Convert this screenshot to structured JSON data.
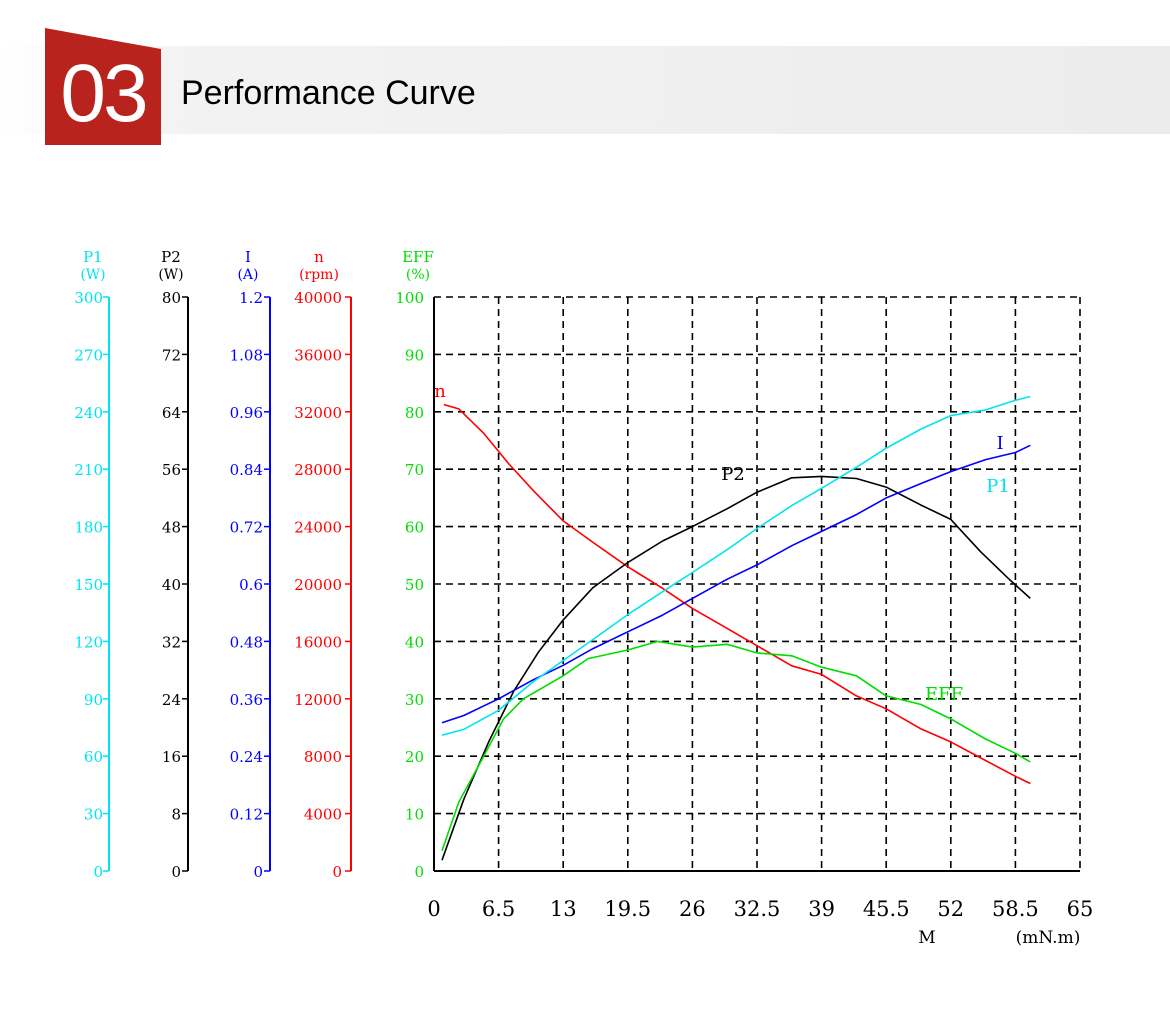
{
  "section": {
    "number": "03",
    "title": "Performance Curve"
  },
  "chart_data": {
    "type": "line",
    "colors": {
      "P1": "#00e5ee",
      "P2": "#000000",
      "I": "#0000ff",
      "n": "#ff0000",
      "EFF": "#00dd00"
    },
    "x_axis": {
      "ticks": [
        "0",
        "6.5",
        "13",
        "19.5",
        "26",
        "32.5",
        "39",
        "45.5",
        "52",
        "58.5",
        "65"
      ],
      "label": "M",
      "unit": "(mN.m)",
      "range": [
        0,
        65
      ]
    },
    "y_axes": [
      {
        "id": "P1",
        "label": "P1",
        "unit": "(W)",
        "range": [
          0,
          300
        ],
        "ticks": [
          "300",
          "270",
          "240",
          "210",
          "180",
          "150",
          "120",
          "90",
          "60",
          "30",
          "0"
        ]
      },
      {
        "id": "P2",
        "label": "P2",
        "unit": "(W)",
        "range": [
          0,
          80
        ],
        "ticks": [
          "80",
          "72",
          "64",
          "56",
          "48",
          "40",
          "32",
          "24",
          "16",
          "8",
          "0"
        ]
      },
      {
        "id": "I",
        "label": "I",
        "unit": "(A)",
        "range": [
          0,
          1.2
        ],
        "ticks": [
          "1.2",
          "1.08",
          "0.96",
          "0.84",
          "0.72",
          "0.6",
          "0.48",
          "0.36",
          "0.24",
          "0.12",
          "0"
        ]
      },
      {
        "id": "n",
        "label": "n",
        "unit": "(rpm)",
        "range": [
          0,
          40000
        ],
        "ticks": [
          "40000",
          "36000",
          "32000",
          "28000",
          "24000",
          "20000",
          "16000",
          "12000",
          "8000",
          "4000",
          "0"
        ]
      },
      {
        "id": "EFF",
        "label": "EFF",
        "unit": "(%)",
        "range": [
          0,
          100
        ],
        "ticks": [
          "100",
          "90",
          "80",
          "70",
          "60",
          "50",
          "40",
          "30",
          "20",
          "10",
          "0"
        ]
      }
    ],
    "grid": true,
    "series": [
      {
        "name": "n",
        "label": "n",
        "axis": "n",
        "x": [
          1,
          2.5,
          5,
          7.5,
          10,
          13,
          16,
          19.5,
          23,
          26,
          29,
          32.5,
          36,
          39,
          42.5,
          45.5,
          49,
          52,
          55.5,
          58.5,
          60
        ],
        "y": [
          32500,
          32200,
          30500,
          28400,
          26500,
          24400,
          22900,
          21200,
          19700,
          18300,
          17100,
          15700,
          14300,
          13700,
          12200,
          11300,
          9900,
          9000,
          7700,
          6600,
          6100
        ]
      },
      {
        "name": "P2",
        "label": "P2",
        "axis": "P2",
        "x": [
          0.8,
          3,
          5.5,
          8,
          10.5,
          13,
          16,
          19.5,
          23,
          26,
          29.5,
          32.5,
          36,
          39,
          42.5,
          45.5,
          49,
          52,
          55,
          58,
          60
        ],
        "y": [
          1.5,
          10,
          18,
          25,
          30.5,
          35,
          39.5,
          43,
          46,
          48,
          50.5,
          52.8,
          54.8,
          55,
          54.7,
          53.5,
          51,
          49,
          44.5,
          40.5,
          38
        ]
      },
      {
        "name": "I",
        "label": "I",
        "axis": "I",
        "x": [
          0.8,
          3,
          6.5,
          10,
          13,
          16,
          19.5,
          23,
          26,
          29.5,
          32.5,
          36,
          39,
          42.5,
          45.5,
          49,
          52,
          55.5,
          58.5,
          60
        ],
        "y": [
          0.31,
          0.325,
          0.36,
          0.4,
          0.43,
          0.465,
          0.5,
          0.535,
          0.57,
          0.61,
          0.64,
          0.68,
          0.71,
          0.745,
          0.78,
          0.81,
          0.835,
          0.86,
          0.875,
          0.89
        ]
      },
      {
        "name": "P1",
        "label": "P1",
        "axis": "P1",
        "x": [
          0.8,
          3,
          6.5,
          10,
          13,
          16,
          19.5,
          23,
          26,
          29.5,
          32.5,
          36,
          39,
          42.5,
          45.5,
          49,
          52,
          55.5,
          58.5,
          60
        ],
        "y": [
          71,
          74,
          84,
          99,
          110,
          121,
          134,
          146,
          156,
          168,
          179,
          191,
          200,
          211,
          221,
          231,
          238,
          241,
          246,
          248
        ]
      },
      {
        "name": "EFF",
        "label": "EFF",
        "axis": "EFF",
        "x": [
          0.8,
          2.5,
          5,
          7,
          9,
          11,
          13,
          15.5,
          19.5,
          22.5,
          26,
          29.5,
          32.5,
          36,
          39,
          42.5,
          45.5,
          49,
          52,
          55.5,
          58.5,
          60
        ],
        "y": [
          3.5,
          12,
          20,
          26.5,
          30,
          32,
          34,
          37,
          38.5,
          40,
          39,
          39.5,
          38,
          37.5,
          35.5,
          34,
          30.5,
          29,
          26.5,
          23,
          20.5,
          19
        ]
      }
    ]
  }
}
